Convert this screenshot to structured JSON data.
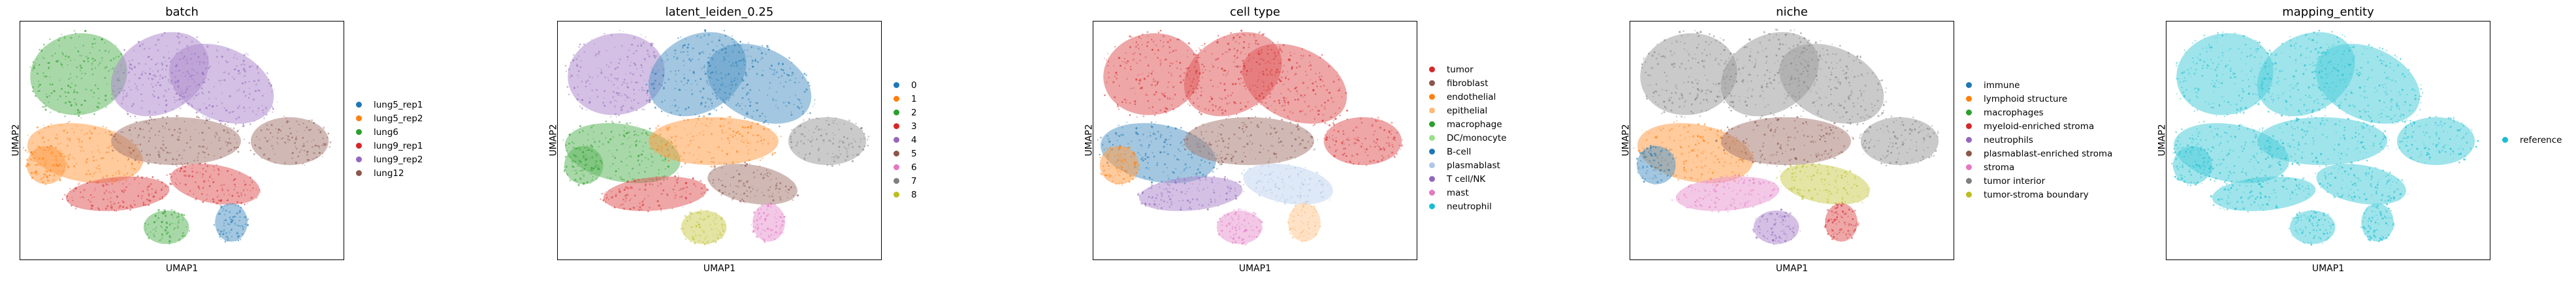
{
  "chart_data": [
    {
      "type": "scatter",
      "title": "batch",
      "xlabel": "UMAP1",
      "ylabel": "UMAP2",
      "legend_position": "right",
      "series": [
        {
          "name": "lung5_rep1",
          "color": "#1f77b4"
        },
        {
          "name": "lung5_rep2",
          "color": "#ff7f0e"
        },
        {
          "name": "lung6",
          "color": "#2ca02c"
        },
        {
          "name": "lung9_rep1",
          "color": "#d62728"
        },
        {
          "name": "lung9_rep2",
          "color": "#9467bd"
        },
        {
          "name": "lung12",
          "color": "#8c564b"
        }
      ]
    },
    {
      "type": "scatter",
      "title": "latent_leiden_0.25",
      "xlabel": "UMAP1",
      "ylabel": "UMAP2",
      "legend_position": "right",
      "series": [
        {
          "name": "0",
          "color": "#1f77b4"
        },
        {
          "name": "1",
          "color": "#ff7f0e"
        },
        {
          "name": "2",
          "color": "#2ca02c"
        },
        {
          "name": "3",
          "color": "#d62728"
        },
        {
          "name": "4",
          "color": "#9467bd"
        },
        {
          "name": "5",
          "color": "#8c564b"
        },
        {
          "name": "6",
          "color": "#e377c2"
        },
        {
          "name": "7",
          "color": "#7f7f7f"
        },
        {
          "name": "8",
          "color": "#bcbd22"
        }
      ]
    },
    {
      "type": "scatter",
      "title": "cell type",
      "xlabel": "UMAP1",
      "ylabel": "UMAP2",
      "legend_position": "right",
      "series": [
        {
          "name": "tumor",
          "color": "#d62728"
        },
        {
          "name": "fibroblast",
          "color": "#8c564b"
        },
        {
          "name": "endothelial",
          "color": "#ff7f0e"
        },
        {
          "name": "epithelial",
          "color": "#ffbb78"
        },
        {
          "name": "macrophage",
          "color": "#2ca02c"
        },
        {
          "name": "DC/monocyte",
          "color": "#98df8a"
        },
        {
          "name": "B-cell",
          "color": "#1f77b4"
        },
        {
          "name": "plasmablast",
          "color": "#aec7e8"
        },
        {
          "name": "T cell/NK",
          "color": "#9467bd"
        },
        {
          "name": "mast",
          "color": "#e377c2"
        },
        {
          "name": "neutrophil",
          "color": "#17becf"
        }
      ]
    },
    {
      "type": "scatter",
      "title": "niche",
      "xlabel": "UMAP1",
      "ylabel": "UMAP2",
      "legend_position": "right",
      "series": [
        {
          "name": "immune",
          "color": "#1f77b4"
        },
        {
          "name": "lymphoid structure",
          "color": "#ff7f0e"
        },
        {
          "name": "macrophages",
          "color": "#2ca02c"
        },
        {
          "name": "myeloid-enriched stroma",
          "color": "#d62728"
        },
        {
          "name": "neutrophils",
          "color": "#9467bd"
        },
        {
          "name": "plasmablast-enriched stroma",
          "color": "#8c564b"
        },
        {
          "name": "stroma",
          "color": "#e377c2"
        },
        {
          "name": "tumor interior",
          "color": "#7f7f7f"
        },
        {
          "name": "tumor-stroma boundary",
          "color": "#bcbd22"
        }
      ]
    },
    {
      "type": "scatter",
      "title": "mapping_entity",
      "xlabel": "UMAP1",
      "ylabel": "UMAP2",
      "legend_position": "right",
      "series": [
        {
          "name": "reference",
          "color": "#17becf"
        }
      ]
    }
  ]
}
